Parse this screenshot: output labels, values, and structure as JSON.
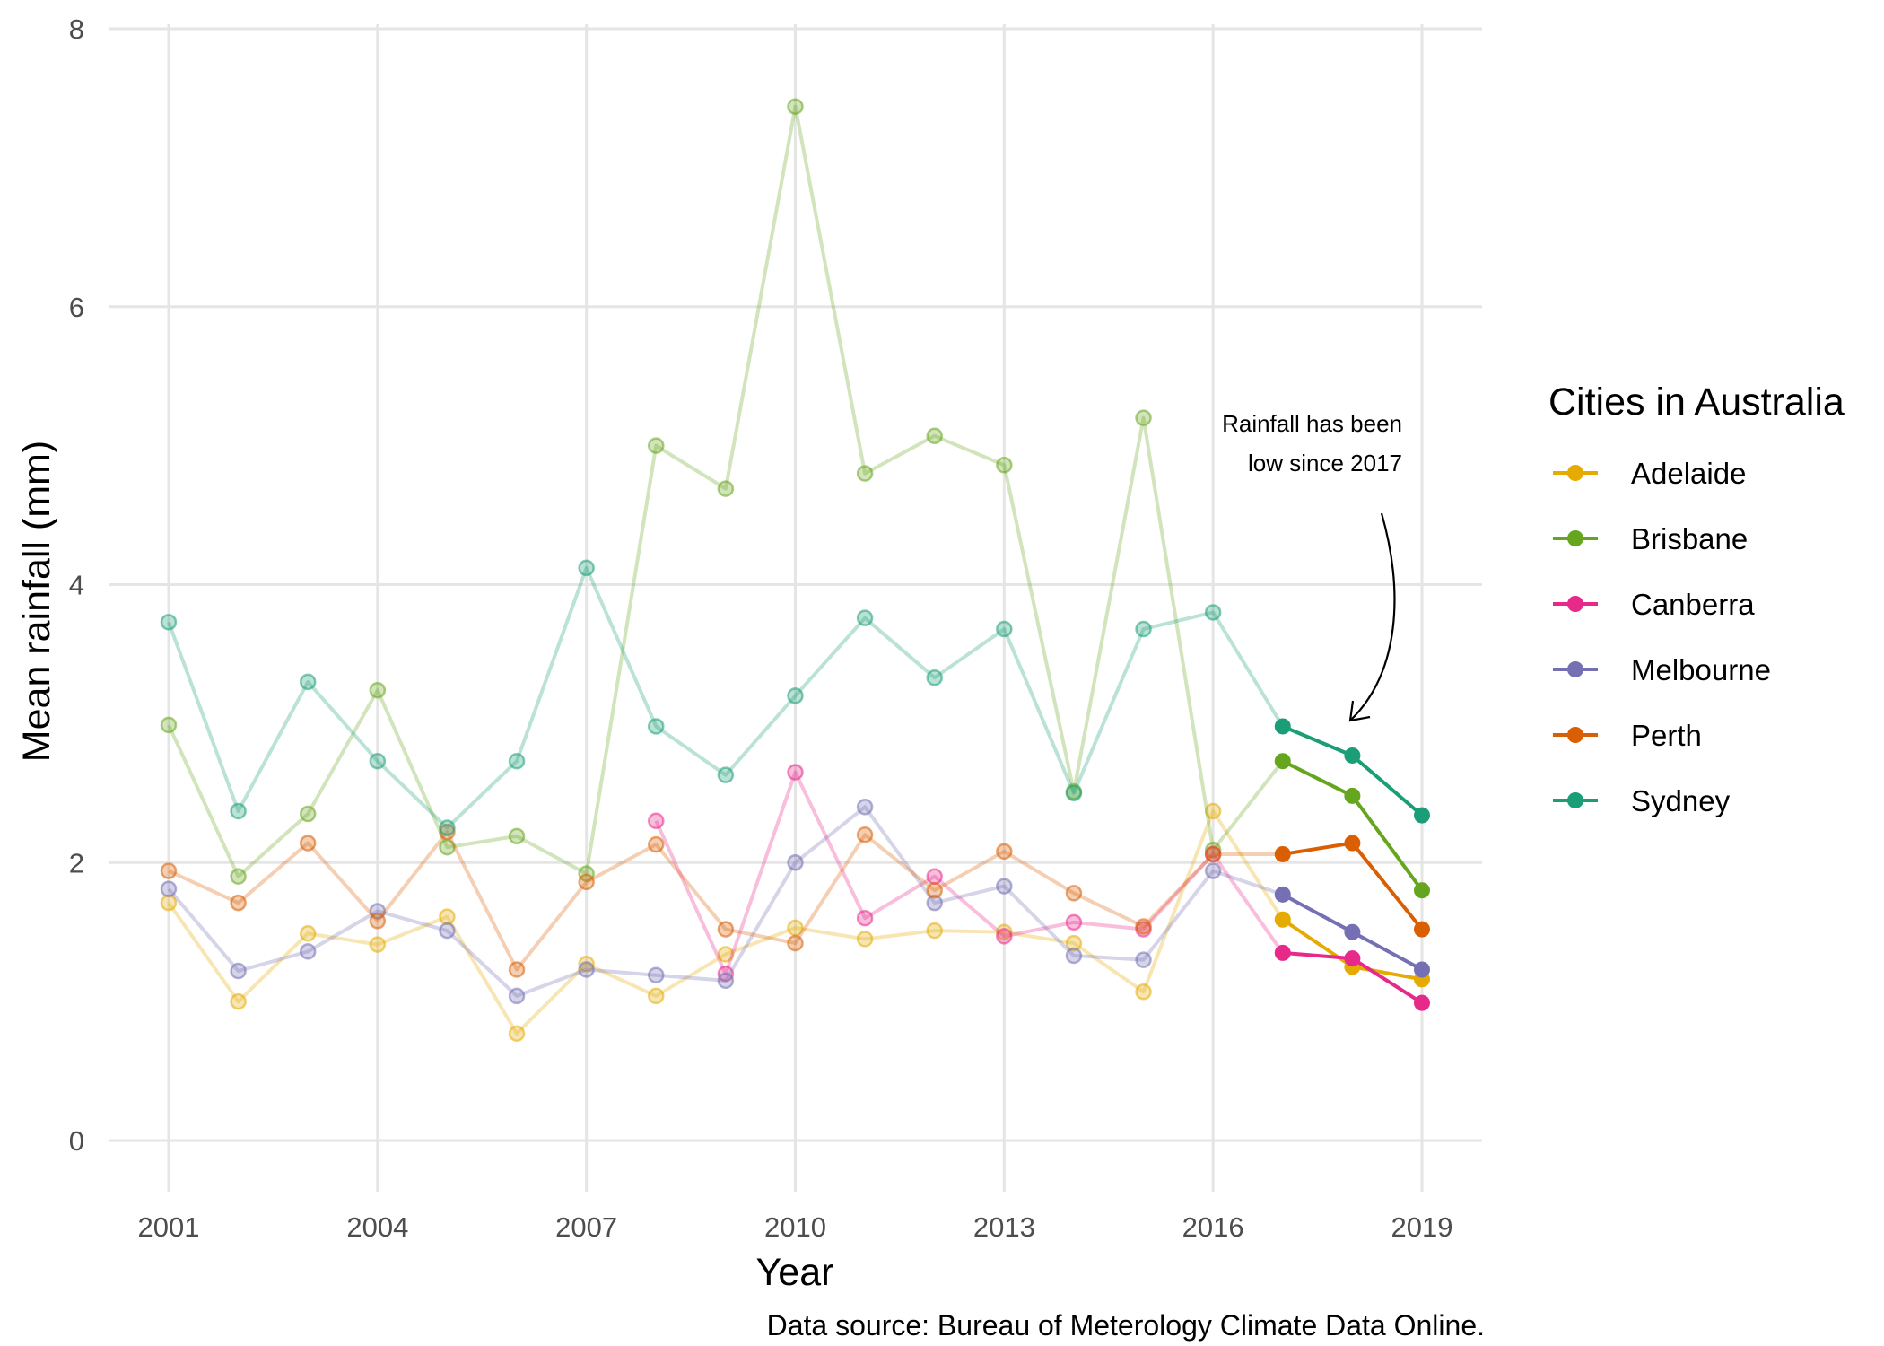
{
  "chart_data": {
    "type": "line",
    "xlabel": "Year",
    "ylabel": "Mean rainfall (mm)",
    "caption": "Data source: Bureau of Meterology Climate Data Online.",
    "annotation": [
      "Rainfall has been",
      "low since 2017"
    ],
    "legend_title": "Cities in Australia",
    "legend_position": "right",
    "grid": true,
    "xlim": [
      2000.2,
      2019.8
    ],
    "ylim": [
      -0.4,
      8.0
    ],
    "x_ticks": [
      2001,
      2004,
      2007,
      2010,
      2013,
      2016,
      2019
    ],
    "y_ticks": [
      0,
      2,
      4,
      6,
      8
    ],
    "highlight_from": 2017,
    "x": [
      2001,
      2002,
      2003,
      2004,
      2005,
      2006,
      2007,
      2008,
      2009,
      2010,
      2011,
      2012,
      2013,
      2014,
      2015,
      2016,
      2017,
      2018,
      2019
    ],
    "series": [
      {
        "name": "Adelaide",
        "color": "#e6ab02",
        "values": [
          1.71,
          1.0,
          1.49,
          1.41,
          1.61,
          0.77,
          1.27,
          1.04,
          1.34,
          1.53,
          1.45,
          1.51,
          1.5,
          1.42,
          1.07,
          2.37,
          1.59,
          1.25,
          1.16
        ]
      },
      {
        "name": "Brisbane",
        "color": "#66a61e",
        "values": [
          2.99,
          1.9,
          2.35,
          3.24,
          2.11,
          2.19,
          1.92,
          5.0,
          4.69,
          7.44,
          4.8,
          5.07,
          4.86,
          2.51,
          5.2,
          2.09,
          2.73,
          2.48,
          1.8
        ]
      },
      {
        "name": "Canberra",
        "color": "#e7298a",
        "values": [
          null,
          null,
          null,
          null,
          null,
          null,
          null,
          2.3,
          1.2,
          2.65,
          1.6,
          1.9,
          1.47,
          1.57,
          1.52,
          2.06,
          1.35,
          1.31,
          0.99
        ]
      },
      {
        "name": "Melbourne",
        "color": "#7570b3",
        "values": [
          1.81,
          1.22,
          1.36,
          1.65,
          1.51,
          1.04,
          1.23,
          1.19,
          1.15,
          2.0,
          2.4,
          1.71,
          1.83,
          1.33,
          1.3,
          1.94,
          1.77,
          1.5,
          1.23
        ]
      },
      {
        "name": "Perth",
        "color": "#d95f02",
        "values": [
          1.94,
          1.71,
          2.14,
          1.58,
          2.22,
          1.23,
          1.86,
          2.13,
          1.52,
          1.42,
          2.2,
          1.8,
          2.08,
          1.78,
          1.54,
          2.06,
          2.06,
          2.14,
          1.52
        ]
      },
      {
        "name": "Sydney",
        "color": "#1b9e77",
        "values": [
          3.73,
          2.37,
          3.3,
          2.73,
          2.25,
          2.73,
          4.12,
          2.98,
          2.63,
          3.2,
          3.76,
          3.33,
          3.68,
          2.5,
          3.68,
          3.8,
          2.98,
          2.77,
          2.34
        ]
      }
    ]
  }
}
